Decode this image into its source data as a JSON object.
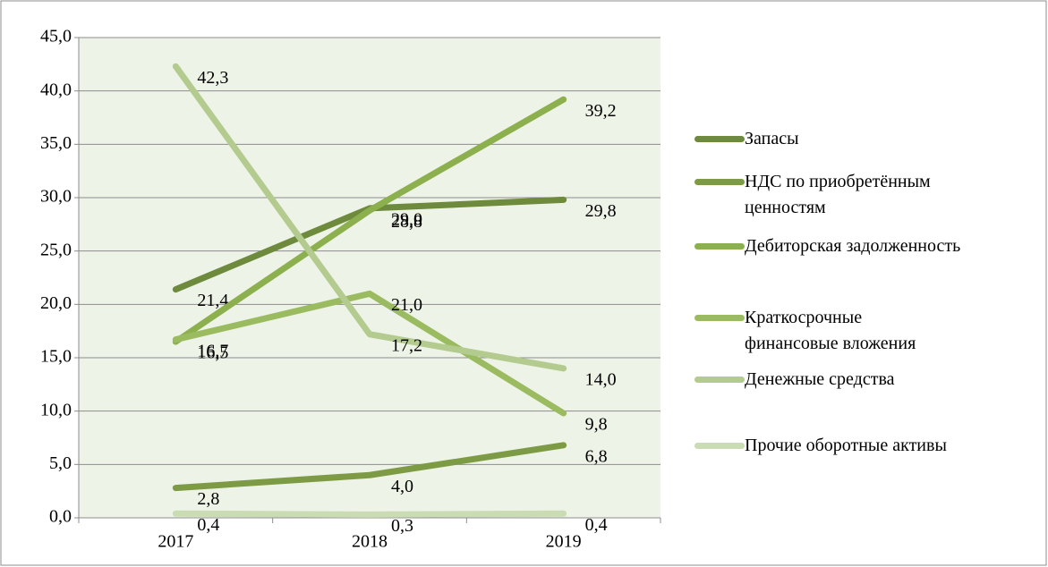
{
  "chart_data": {
    "type": "line",
    "categories": [
      "2017",
      "2018",
      "2019"
    ],
    "series": [
      {
        "name": "Запасы",
        "color": "#6e8a3c",
        "values": [
          21.4,
          29.0,
          29.8
        ],
        "value_labels": [
          "21,4",
          "29,0",
          "29,8"
        ]
      },
      {
        "name": "НДС по приобретённым ценностям",
        "color": "#7d9b44",
        "values": [
          2.8,
          4.0,
          6.8
        ],
        "value_labels": [
          "2,8",
          "4,0",
          "6,8"
        ]
      },
      {
        "name": "Дебиторская задолженность",
        "color": "#8db04f",
        "values": [
          16.5,
          28.8,
          39.2
        ],
        "value_labels": [
          "16,5",
          "28,8",
          "39,2"
        ]
      },
      {
        "name": "Краткосрочные финансовые вложения",
        "color": "#9bbb60",
        "values": [
          16.7,
          21.0,
          9.8
        ],
        "value_labels": [
          "16,7",
          "21,0",
          "9,8"
        ]
      },
      {
        "name": "Денежные средства",
        "color": "#b4cb8f",
        "values": [
          42.3,
          17.2,
          14.0
        ],
        "value_labels": [
          "42,3",
          "17,2",
          "14,0"
        ]
      },
      {
        "name": "Прочие оборотные активы",
        "color": "#cadcb3",
        "values": [
          0.4,
          0.3,
          0.4
        ],
        "value_labels": [
          "0,4",
          "0,3",
          "0,4"
        ]
      }
    ],
    "ylim": [
      0,
      45
    ],
    "yticks": [
      {
        "value": 0,
        "label": "0,0"
      },
      {
        "value": 5,
        "label": "5,0"
      },
      {
        "value": 10,
        "label": "10,0"
      },
      {
        "value": 15,
        "label": "15,0"
      },
      {
        "value": 20,
        "label": "20,0"
      },
      {
        "value": 25,
        "label": "25,0"
      },
      {
        "value": 30,
        "label": "30,0"
      },
      {
        "value": 35,
        "label": "35,0"
      },
      {
        "value": 40,
        "label": "40,0"
      },
      {
        "value": 45,
        "label": "45,0"
      }
    ],
    "grid": true
  }
}
